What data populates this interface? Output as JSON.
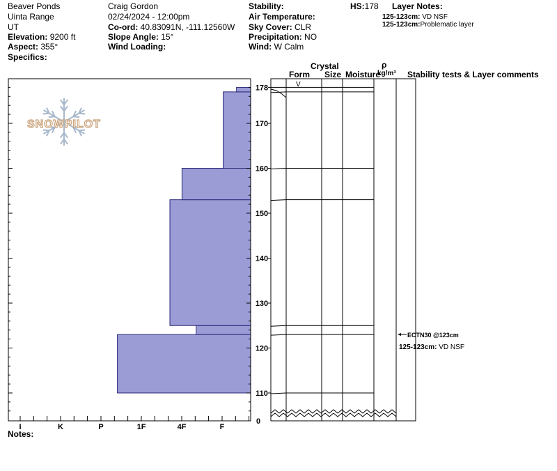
{
  "site": {
    "location": "Beaver Ponds",
    "range": "Uinta Range",
    "state": "UT",
    "elevation_label": "Elevation:",
    "elevation": "9200 ft",
    "aspect_label": "Aspect:",
    "aspect": "355°",
    "specifics_label": "Specifics:"
  },
  "observer": {
    "name": "Craig Gordon",
    "datetime": "02/24/2024 - 12:00pm",
    "coord_label": "Co-ord:",
    "coord": "40.83091N, -111.12560W",
    "slope_label": "Slope Angle:",
    "slope": "15°",
    "wind_loading_label": "Wind Loading:"
  },
  "conditions": {
    "stability_label": "Stability:",
    "air_temp_label": "Air Temperature:",
    "sky_label": "Sky Cover:",
    "sky": "CLR",
    "precip_label": "Precipitation:",
    "precip": "NO",
    "wind_label": "Wind:",
    "wind": "W Calm"
  },
  "hs": {
    "label": "HS:",
    "value": "178"
  },
  "layer_notes": {
    "title": "Layer Notes:",
    "items": [
      {
        "range": "125-123cm:",
        "text": "VD NSF"
      },
      {
        "range": "125-123cm:",
        "text": "Problematic layer"
      }
    ]
  },
  "columns": {
    "crystal": "Crystal",
    "form": "Form",
    "size": "Size",
    "moisture": "Moisture",
    "rho": "ρ",
    "density_unit": "kg/m³",
    "stability_comments": "Stability tests & Layer comments"
  },
  "notes_label": "Notes:",
  "logo_text": "SNOWPILOT",
  "zero_label": "0",
  "form_symbol": "V",
  "stability_tests": [
    {
      "label": "ECTN30 @123cm",
      "depth": 123
    },
    {
      "label": "125-123cm:",
      "text": "VD NSF",
      "depth": 123
    }
  ],
  "colors": {
    "fill": "#9b9bd6",
    "stroke": "#2a2a7a",
    "logo": "#c8a27a",
    "flake": "#a8b8cc"
  },
  "chart_data": {
    "type": "bar",
    "orientation": "horizontal",
    "x_tick_labels": [
      "I",
      "K",
      "P",
      "1F",
      "4F",
      "F"
    ],
    "y_ticks": [
      110,
      120,
      130,
      140,
      150,
      160,
      170,
      178
    ],
    "y_range": [
      104,
      180
    ],
    "layers": [
      {
        "bottom": 110,
        "top": 123,
        "hardness": 3.3
      },
      {
        "bottom": 123,
        "top": 125,
        "hardness": 1.35
      },
      {
        "bottom": 125,
        "top": 153,
        "hardness": 2.0
      },
      {
        "bottom": 153,
        "top": 160,
        "hardness": 1.7
      },
      {
        "bottom": 160,
        "top": 177,
        "hardness": 0.68
      },
      {
        "bottom": 177,
        "top": 178,
        "hardness": 0.35
      }
    ],
    "layer_boundaries": [
      110,
      123,
      125,
      153,
      160,
      177
    ]
  }
}
